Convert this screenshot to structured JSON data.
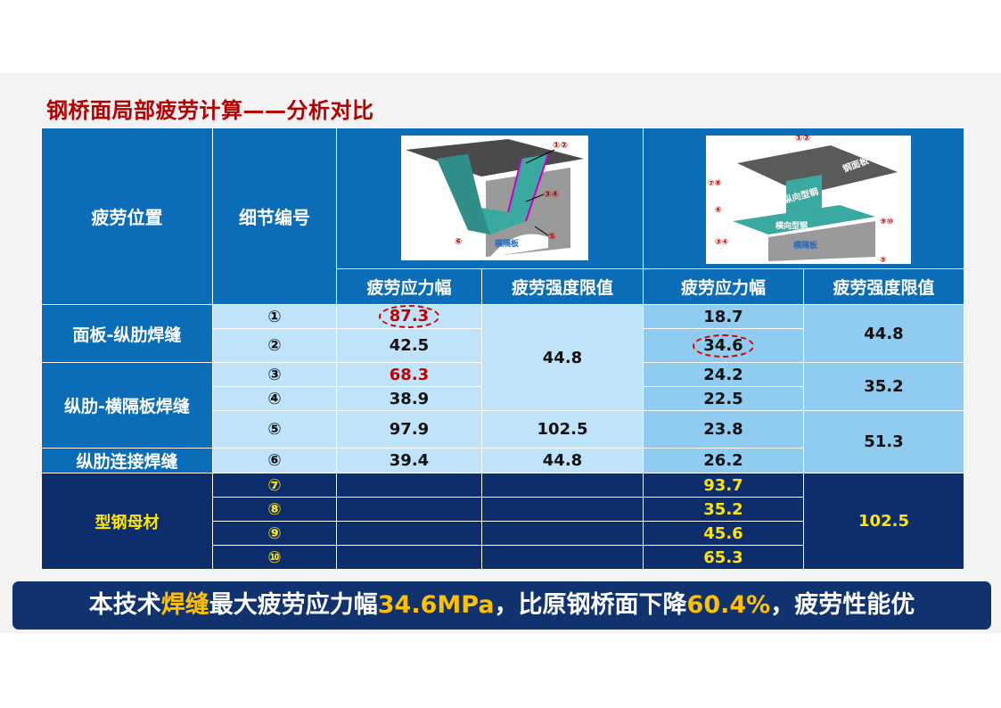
{
  "title": "钢桥面局部疲劳计算——分析对比",
  "header": {
    "col1": "疲劳位置",
    "col2": "细节编号",
    "left_sub": [
      "疲劳应力幅",
      "疲劳强度限值"
    ],
    "right_sub": [
      "疲劳应力幅",
      "疲劳强度限值"
    ]
  },
  "left_image": {
    "label_top": "①②",
    "label_mid": "③④",
    "label_6": "⑥",
    "label_5": "⑤",
    "plate": "横隔板"
  },
  "right_image": {
    "label_top": "①②",
    "deck": "钢面板",
    "long_steel": "纵向型钢",
    "trans_steel": "横向型钢",
    "plate": "横隔板",
    "label_78": "⑦⑧",
    "label_6": "⑥",
    "label_910": "⑨⑩",
    "label_34": "③④",
    "label_5": "⑤"
  },
  "rows": {
    "groups": [
      "面板-纵肋焊缝",
      "纵肋-横隔板焊缝",
      "纵肋连接焊缝",
      "型钢母材"
    ],
    "ids": [
      "①",
      "②",
      "③",
      "④",
      "⑤",
      "⑥",
      "⑦",
      "⑧",
      "⑨",
      "⑩"
    ],
    "left_stress": [
      "87.3",
      "42.5",
      "68.3",
      "38.9",
      "97.9",
      "39.4"
    ],
    "left_limits": [
      "44.8",
      "102.5",
      "44.8"
    ],
    "right_stress": [
      "18.7",
      "34.6",
      "24.2",
      "22.5",
      "23.8",
      "26.2",
      "93.7",
      "35.2",
      "45.6",
      "65.3"
    ],
    "right_limits": [
      "44.8",
      "35.2",
      "51.3",
      "102.5"
    ]
  },
  "banner": {
    "p1": "本技术",
    "p2": "焊缝",
    "p3": "最大疲劳应力幅",
    "p4": "34.6MPa",
    "p5": "，比原钢桥面下降",
    "p6": "60.4%",
    "p7": "，疲劳性能优"
  },
  "colors": {
    "title": "#b20000",
    "header_blue": "#0b6cb8",
    "light_blue": "#bfe3f8",
    "mid_blue": "#8fccf0",
    "dark_navy": "#0d2d6c",
    "yellow": "#ffe600",
    "highlight": "#ffc000",
    "red": "#c00000"
  }
}
